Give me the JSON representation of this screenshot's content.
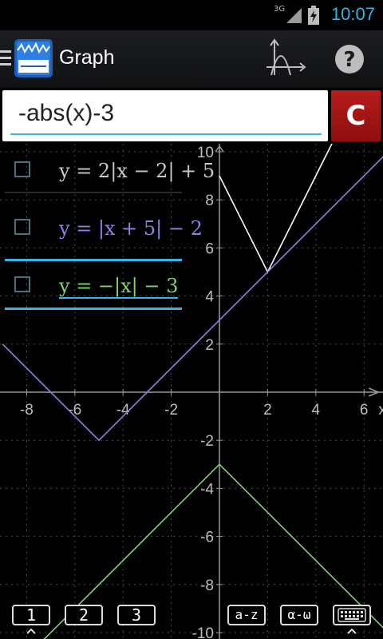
{
  "status_bar": {
    "signal": "3G",
    "time": "10:07"
  },
  "action_bar": {
    "title": "Graph"
  },
  "input": {
    "expression": "-abs(x)-3",
    "clear_label": "C"
  },
  "functions": [
    {
      "label": "y = 2|x − 2| + 5",
      "color": "#ffffff",
      "checked": false
    },
    {
      "label": "y = |x + 5| − 2",
      "color": "#8f7fe6",
      "checked": false
    },
    {
      "label": "y = −|x| − 3",
      "color": "#7fd36b",
      "checked": false
    }
  ],
  "graph": {
    "x_tick_labels": [
      "-8",
      "-6",
      "-4",
      "-2",
      "2",
      "4",
      "6"
    ],
    "y_tick_labels": [
      "10",
      "8",
      "6",
      "4",
      "2",
      "-2",
      "-4",
      "-6",
      "-8",
      "-10"
    ],
    "x_axis_label": "x"
  },
  "keys": {
    "set1": "1",
    "set2": "2",
    "set3": "3",
    "latin": "a-z",
    "greek": "α-ω"
  },
  "colors": {
    "background": "#000000",
    "grid": "#4a4a5a",
    "accent": "#33b5e5",
    "clear_button": "#a51313"
  },
  "chart_data": {
    "type": "line",
    "title": "",
    "xlabel": "x",
    "ylabel": "",
    "xlim": [
      -9,
      7
    ],
    "ylim": [
      -10,
      10.5
    ],
    "grid": true,
    "series": [
      {
        "name": "y = 2|x − 2| + 5",
        "color": "#ffffff",
        "points": [
          [
            0,
            9
          ],
          [
            2,
            5
          ],
          [
            4,
            9
          ],
          [
            5.5,
            12
          ]
        ]
      },
      {
        "name": "y = |x + 5| − 2",
        "color": "#8f7fe6",
        "points": [
          [
            -9,
            2
          ],
          [
            -5,
            -2
          ],
          [
            7,
            10
          ]
        ]
      },
      {
        "name": "y = −|x| − 3",
        "color": "#7fd36b",
        "points": [
          [
            -8,
            -11
          ],
          [
            0,
            -3
          ],
          [
            7,
            -10
          ]
        ]
      }
    ]
  }
}
